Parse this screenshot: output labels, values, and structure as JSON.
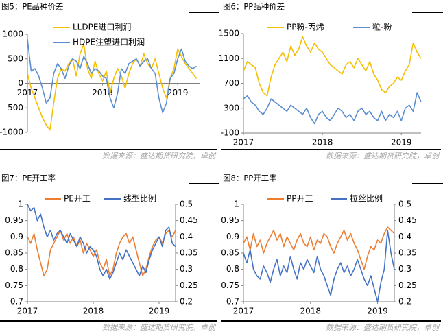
{
  "chart_data": [
    {
      "type": "line",
      "title": "图5：PE品种价差",
      "source": "数据来源：盛达期货研究院，卓创",
      "x": [
        2017,
        2017.05,
        2017.1,
        2017.15,
        2017.2,
        2017.25,
        2017.3,
        2017.35,
        2017.4,
        2017.45,
        2017.5,
        2017.55,
        2017.6,
        2017.65,
        2017.7,
        2017.75,
        2017.8,
        2017.85,
        2017.9,
        2017.95,
        2018,
        2018.05,
        2018.1,
        2018.15,
        2018.2,
        2018.25,
        2018.3,
        2018.35,
        2018.4,
        2018.45,
        2018.5,
        2018.55,
        2018.6,
        2018.65,
        2018.7,
        2018.75,
        2018.8,
        2018.85,
        2018.9,
        2018.95,
        2019,
        2019.05,
        2019.1,
        2019.15,
        2019.2,
        2019.25
      ],
      "xlim": [
        2017,
        2019.3
      ],
      "xticks": [
        2017,
        2018,
        2019
      ],
      "ylim": [
        -1000,
        1000
      ],
      "yticks": [
        -1000,
        -500,
        0,
        500,
        1000
      ],
      "series": [
        {
          "name": "LLDPE进口利润",
          "color": "#f5bf00",
          "values": [
            200,
            -100,
            -300,
            -500,
            -700,
            -850,
            -950,
            -400,
            100,
            300,
            250,
            400,
            500,
            150,
            600,
            800,
            300,
            100,
            450,
            200,
            50,
            250,
            -200,
            100,
            300,
            150,
            -100,
            200,
            400,
            500,
            350,
            600,
            400,
            300,
            500,
            200,
            -100,
            -300,
            100,
            300,
            700,
            550,
            400,
            300,
            200,
            100
          ]
        },
        {
          "name": "HDPE注塑进口利润",
          "color": "#5b8ed0",
          "values": [
            900,
            250,
            300,
            150,
            -100,
            -400,
            -300,
            200,
            400,
            300,
            100,
            350,
            500,
            450,
            300,
            550,
            400,
            200,
            300,
            250,
            150,
            100,
            -300,
            -500,
            -200,
            300,
            200,
            400,
            450,
            500,
            350,
            450,
            500,
            300,
            200,
            -300,
            -600,
            -400,
            100,
            200,
            500,
            700,
            450,
            350,
            300,
            350
          ]
        }
      ]
    },
    {
      "type": "line",
      "title": "图6：PP品种价差",
      "source": "数据来源：盛达期货研究院，卓创",
      "x": [
        2017,
        2017.05,
        2017.1,
        2017.15,
        2017.2,
        2017.25,
        2017.3,
        2017.35,
        2017.4,
        2017.45,
        2017.5,
        2017.55,
        2017.6,
        2017.65,
        2017.7,
        2017.75,
        2017.8,
        2017.85,
        2017.9,
        2017.95,
        2018,
        2018.05,
        2018.1,
        2018.15,
        2018.2,
        2018.25,
        2018.3,
        2018.35,
        2018.4,
        2018.45,
        2018.5,
        2018.55,
        2018.6,
        2018.65,
        2018.7,
        2018.75,
        2018.8,
        2018.85,
        2018.9,
        2018.95,
        2019,
        2019.05,
        2019.1,
        2019.15,
        2019.2,
        2019.25
      ],
      "xlim": [
        2017,
        2019.25
      ],
      "xticks": [
        2017,
        2018,
        2019
      ],
      "ylim": [
        -100,
        1500
      ],
      "yticks": [
        -100,
        300,
        700,
        1100,
        1500
      ],
      "series": [
        {
          "name": "PP粉-丙烯",
          "color": "#f5bf00",
          "values": [
            900,
            1050,
            1000,
            950,
            700,
            550,
            500,
            800,
            1000,
            1100,
            1200,
            1050,
            1300,
            1150,
            1250,
            1450,
            1300,
            1200,
            1350,
            1250,
            1200,
            1100,
            1000,
            950,
            900,
            850,
            1000,
            1050,
            950,
            1100,
            1000,
            900,
            1050,
            850,
            750,
            600,
            550,
            650,
            700,
            800,
            750,
            900,
            1000,
            1350,
            1200,
            1100
          ]
        },
        {
          "name": "粒-粉",
          "color": "#5b8ed0",
          "values": [
            450,
            500,
            400,
            350,
            250,
            200,
            300,
            450,
            400,
            350,
            300,
            250,
            350,
            300,
            250,
            200,
            300,
            150,
            50,
            200,
            250,
            150,
            100,
            200,
            300,
            250,
            150,
            200,
            100,
            250,
            300,
            200,
            250,
            150,
            100,
            250,
            100,
            200,
            150,
            250,
            100,
            300,
            350,
            250,
            550,
            400
          ]
        }
      ]
    },
    {
      "type": "line",
      "title": "图7：PE开工率",
      "source": "数据来源：盛达期货研究院，卓创",
      "x": [
        2017,
        2017.05,
        2017.1,
        2017.15,
        2017.2,
        2017.25,
        2017.3,
        2017.35,
        2017.4,
        2017.45,
        2017.5,
        2017.55,
        2017.6,
        2017.65,
        2017.7,
        2017.75,
        2017.8,
        2017.85,
        2017.9,
        2017.95,
        2018,
        2018.05,
        2018.1,
        2018.15,
        2018.2,
        2018.25,
        2018.3,
        2018.35,
        2018.4,
        2018.45,
        2018.5,
        2018.55,
        2018.6,
        2018.65,
        2018.7,
        2018.75,
        2018.8,
        2018.85,
        2018.9,
        2018.95,
        2019,
        2019.05,
        2019.1,
        2019.15,
        2019.2,
        2019.25
      ],
      "xlim": [
        2017,
        2019.25
      ],
      "xticks": [
        2017,
        2018,
        2019
      ],
      "ylim": [
        0.7,
        1
      ],
      "yticks": [
        0.7,
        0.75,
        0.8,
        0.85,
        0.9,
        0.95,
        1
      ],
      "y2lim": [
        0.2,
        0.5
      ],
      "y2ticks": [
        0.2,
        0.25,
        0.3,
        0.35,
        0.4,
        0.45,
        0.5
      ],
      "series": [
        {
          "name": "PE开工",
          "color": "#ed7d31",
          "values": [
            0.9,
            0.88,
            0.91,
            0.86,
            0.82,
            0.78,
            0.8,
            0.86,
            0.88,
            0.9,
            0.92,
            0.89,
            0.91,
            0.88,
            0.9,
            0.87,
            0.89,
            0.85,
            0.88,
            0.86,
            0.84,
            0.86,
            0.82,
            0.8,
            0.83,
            0.78,
            0.8,
            0.85,
            0.88,
            0.9,
            0.91,
            0.88,
            0.9,
            0.86,
            0.82,
            0.78,
            0.8,
            0.84,
            0.87,
            0.89,
            0.9,
            0.88,
            0.91,
            0.92,
            0.9,
            0.92
          ]
        },
        {
          "name": "线型比例",
          "color": "#4472c4",
          "axis": "y2",
          "values": [
            0.5,
            0.48,
            0.49,
            0.45,
            0.47,
            0.43,
            0.4,
            0.42,
            0.39,
            0.41,
            0.42,
            0.4,
            0.38,
            0.41,
            0.39,
            0.37,
            0.4,
            0.38,
            0.35,
            0.37,
            0.36,
            0.34,
            0.3,
            0.28,
            0.3,
            0.27,
            0.29,
            0.32,
            0.35,
            0.33,
            0.36,
            0.34,
            0.32,
            0.3,
            0.28,
            0.31,
            0.29,
            0.33,
            0.36,
            0.38,
            0.4,
            0.37,
            0.42,
            0.43,
            0.38,
            0.37
          ]
        }
      ]
    },
    {
      "type": "line",
      "title": "图8：PP开工率",
      "source": "数据来源：盛达期货研究院，卓创",
      "x": [
        2017,
        2017.05,
        2017.1,
        2017.15,
        2017.2,
        2017.25,
        2017.3,
        2017.35,
        2017.4,
        2017.45,
        2017.5,
        2017.55,
        2017.6,
        2017.65,
        2017.7,
        2017.75,
        2017.8,
        2017.85,
        2017.9,
        2017.95,
        2018,
        2018.05,
        2018.1,
        2018.15,
        2018.2,
        2018.25,
        2018.3,
        2018.35,
        2018.4,
        2018.45,
        2018.5,
        2018.55,
        2018.6,
        2018.65,
        2018.7,
        2018.75,
        2018.8,
        2018.85,
        2018.9,
        2018.95,
        2019,
        2019.05,
        2019.1,
        2019.15,
        2019.2,
        2019.25
      ],
      "xlim": [
        2017,
        2019.25
      ],
      "xticks": [
        2017,
        2018,
        2019
      ],
      "ylim": [
        0.7,
        1
      ],
      "yticks": [
        0.7,
        0.75,
        0.8,
        0.85,
        0.9,
        0.95,
        1
      ],
      "y2lim": [
        0.2,
        0.5
      ],
      "y2ticks": [
        0.2,
        0.25,
        0.3,
        0.35,
        0.4,
        0.45,
        0.5
      ],
      "series": [
        {
          "name": "PP开工",
          "color": "#ed7d31",
          "values": [
            0.88,
            0.9,
            0.86,
            0.91,
            0.87,
            0.89,
            0.85,
            0.88,
            0.9,
            0.92,
            0.89,
            0.91,
            0.87,
            0.9,
            0.88,
            0.86,
            0.89,
            0.91,
            0.88,
            0.87,
            0.9,
            0.86,
            0.89,
            0.88,
            0.91,
            0.9,
            0.87,
            0.85,
            0.88,
            0.9,
            0.92,
            0.89,
            0.91,
            0.88,
            0.86,
            0.83,
            0.8,
            0.84,
            0.87,
            0.86,
            0.89,
            0.88,
            0.91,
            0.93,
            0.92,
            0.91
          ]
        },
        {
          "name": "拉丝比例",
          "color": "#4472c4",
          "axis": "y2",
          "values": [
            0.35,
            0.32,
            0.36,
            0.3,
            0.28,
            0.27,
            0.31,
            0.29,
            0.26,
            0.3,
            0.33,
            0.28,
            0.31,
            0.29,
            0.34,
            0.3,
            0.27,
            0.32,
            0.3,
            0.33,
            0.31,
            0.29,
            0.34,
            0.3,
            0.28,
            0.25,
            0.22,
            0.27,
            0.3,
            0.32,
            0.29,
            0.31,
            0.28,
            0.3,
            0.33,
            0.3,
            0.27,
            0.25,
            0.28,
            0.24,
            0.2,
            0.26,
            0.3,
            0.42,
            0.35,
            0.3
          ]
        }
      ]
    }
  ]
}
